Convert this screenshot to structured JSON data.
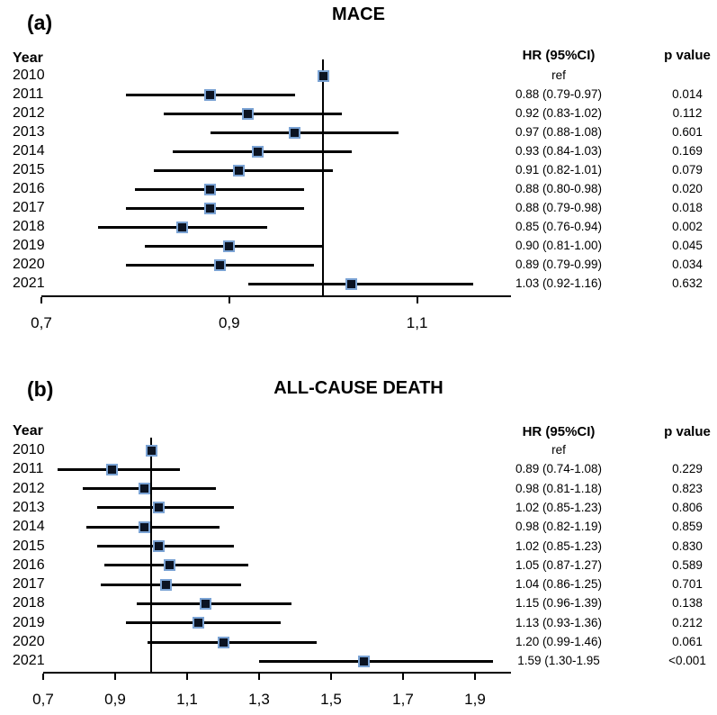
{
  "figure": {
    "background": "#ffffff",
    "text_color": "#000000"
  },
  "colors": {
    "marker_fill": "#0b1322",
    "marker_border": "#7ba3d4",
    "line_color": "#000000"
  },
  "chart_data": [
    {
      "type": "scatter",
      "variant": "forest-plot",
      "panel_label": "(a)",
      "title": "MACE",
      "columns": {
        "year": "Year",
        "hr": "HR (95%CI)",
        "p": "p value"
      },
      "xlim": [
        0.7,
        1.2
      ],
      "ref_line_x": 1.0,
      "grid": false,
      "x_ticks": [
        {
          "value": 0.7,
          "label": "0,7"
        },
        {
          "value": 0.9,
          "label": "0,9"
        },
        {
          "value": 1.1,
          "label": "1,1"
        }
      ],
      "rows": [
        {
          "year": "2010",
          "hr": 1.0,
          "ci_low": null,
          "ci_high": null,
          "hr_label": "ref",
          "p_label": ""
        },
        {
          "year": "2011",
          "hr": 0.88,
          "ci_low": 0.79,
          "ci_high": 0.97,
          "hr_label": "0.88 (0.79-0.97)",
          "p_label": "0.014"
        },
        {
          "year": "2012",
          "hr": 0.92,
          "ci_low": 0.83,
          "ci_high": 1.02,
          "hr_label": "0.92 (0.83-1.02)",
          "p_label": "0.112"
        },
        {
          "year": "2013",
          "hr": 0.97,
          "ci_low": 0.88,
          "ci_high": 1.08,
          "hr_label": "0.97 (0.88-1.08)",
          "p_label": "0.601"
        },
        {
          "year": "2014",
          "hr": 0.93,
          "ci_low": 0.84,
          "ci_high": 1.03,
          "hr_label": "0.93 (0.84-1.03)",
          "p_label": "0.169"
        },
        {
          "year": "2015",
          "hr": 0.91,
          "ci_low": 0.82,
          "ci_high": 1.01,
          "hr_label": "0.91 (0.82-1.01)",
          "p_label": "0.079"
        },
        {
          "year": "2016",
          "hr": 0.88,
          "ci_low": 0.8,
          "ci_high": 0.98,
          "hr_label": "0.88 (0.80-0.98)",
          "p_label": "0.020"
        },
        {
          "year": "2017",
          "hr": 0.88,
          "ci_low": 0.79,
          "ci_high": 0.98,
          "hr_label": "0.88 (0.79-0.98)",
          "p_label": "0.018"
        },
        {
          "year": "2018",
          "hr": 0.85,
          "ci_low": 0.76,
          "ci_high": 0.94,
          "hr_label": "0.85 (0.76-0.94)",
          "p_label": "0.002"
        },
        {
          "year": "2019",
          "hr": 0.9,
          "ci_low": 0.81,
          "ci_high": 1.0,
          "hr_label": "0.90 (0.81-1.00)",
          "p_label": "0.045"
        },
        {
          "year": "2020",
          "hr": 0.89,
          "ci_low": 0.79,
          "ci_high": 0.99,
          "hr_label": "0.89 (0.79-0.99)",
          "p_label": "0.034"
        },
        {
          "year": "2021",
          "hr": 1.03,
          "ci_low": 0.92,
          "ci_high": 1.16,
          "hr_label": "1.03 (0.92-1.16)",
          "p_label": "0.632"
        }
      ]
    },
    {
      "type": "scatter",
      "variant": "forest-plot",
      "panel_label": "(b)",
      "title": "ALL-CAUSE DEATH",
      "columns": {
        "year": "Year",
        "hr": "HR (95%CI)",
        "p": "p value"
      },
      "xlim": [
        0.7,
        2.0
      ],
      "ref_line_x": 1.0,
      "grid": false,
      "x_ticks": [
        {
          "value": 0.7,
          "label": "0,7"
        },
        {
          "value": 0.9,
          "label": "0,9"
        },
        {
          "value": 1.1,
          "label": "1,1"
        },
        {
          "value": 1.3,
          "label": "1,3"
        },
        {
          "value": 1.5,
          "label": "1,5"
        },
        {
          "value": 1.7,
          "label": "1,7"
        },
        {
          "value": 1.9,
          "label": "1,9"
        }
      ],
      "rows": [
        {
          "year": "2010",
          "hr": 1.0,
          "ci_low": null,
          "ci_high": null,
          "hr_label": "ref",
          "p_label": ""
        },
        {
          "year": "2011",
          "hr": 0.89,
          "ci_low": 0.74,
          "ci_high": 1.08,
          "hr_label": "0.89 (0.74-1.08)",
          "p_label": "0.229"
        },
        {
          "year": "2012",
          "hr": 0.98,
          "ci_low": 0.81,
          "ci_high": 1.18,
          "hr_label": "0.98 (0.81-1.18)",
          "p_label": "0.823"
        },
        {
          "year": "2013",
          "hr": 1.02,
          "ci_low": 0.85,
          "ci_high": 1.23,
          "hr_label": "1.02 (0.85-1.23)",
          "p_label": "0.806"
        },
        {
          "year": "2014",
          "hr": 0.98,
          "ci_low": 0.82,
          "ci_high": 1.19,
          "hr_label": "0.98 (0.82-1.19)",
          "p_label": "0.859"
        },
        {
          "year": "2015",
          "hr": 1.02,
          "ci_low": 0.85,
          "ci_high": 1.23,
          "hr_label": "1.02 (0.85-1.23)",
          "p_label": "0.830"
        },
        {
          "year": "2016",
          "hr": 1.05,
          "ci_low": 0.87,
          "ci_high": 1.27,
          "hr_label": "1.05 (0.87-1.27)",
          "p_label": "0.589"
        },
        {
          "year": "2017",
          "hr": 1.04,
          "ci_low": 0.86,
          "ci_high": 1.25,
          "hr_label": "1.04 (0.86-1.25)",
          "p_label": "0.701"
        },
        {
          "year": "2018",
          "hr": 1.15,
          "ci_low": 0.96,
          "ci_high": 1.39,
          "hr_label": "1.15 (0.96-1.39)",
          "p_label": "0.138"
        },
        {
          "year": "2019",
          "hr": 1.13,
          "ci_low": 0.93,
          "ci_high": 1.36,
          "hr_label": "1.13 (0.93-1.36)",
          "p_label": "0.212"
        },
        {
          "year": "2020",
          "hr": 1.2,
          "ci_low": 0.99,
          "ci_high": 1.46,
          "hr_label": "1.20 (0.99-1.46)",
          "p_label": "0.061"
        },
        {
          "year": "2021",
          "hr": 1.59,
          "ci_low": 1.3,
          "ci_high": 1.95,
          "hr_label": "1.59 (1.30-1.95",
          "p_label": "<0.001"
        }
      ]
    }
  ]
}
